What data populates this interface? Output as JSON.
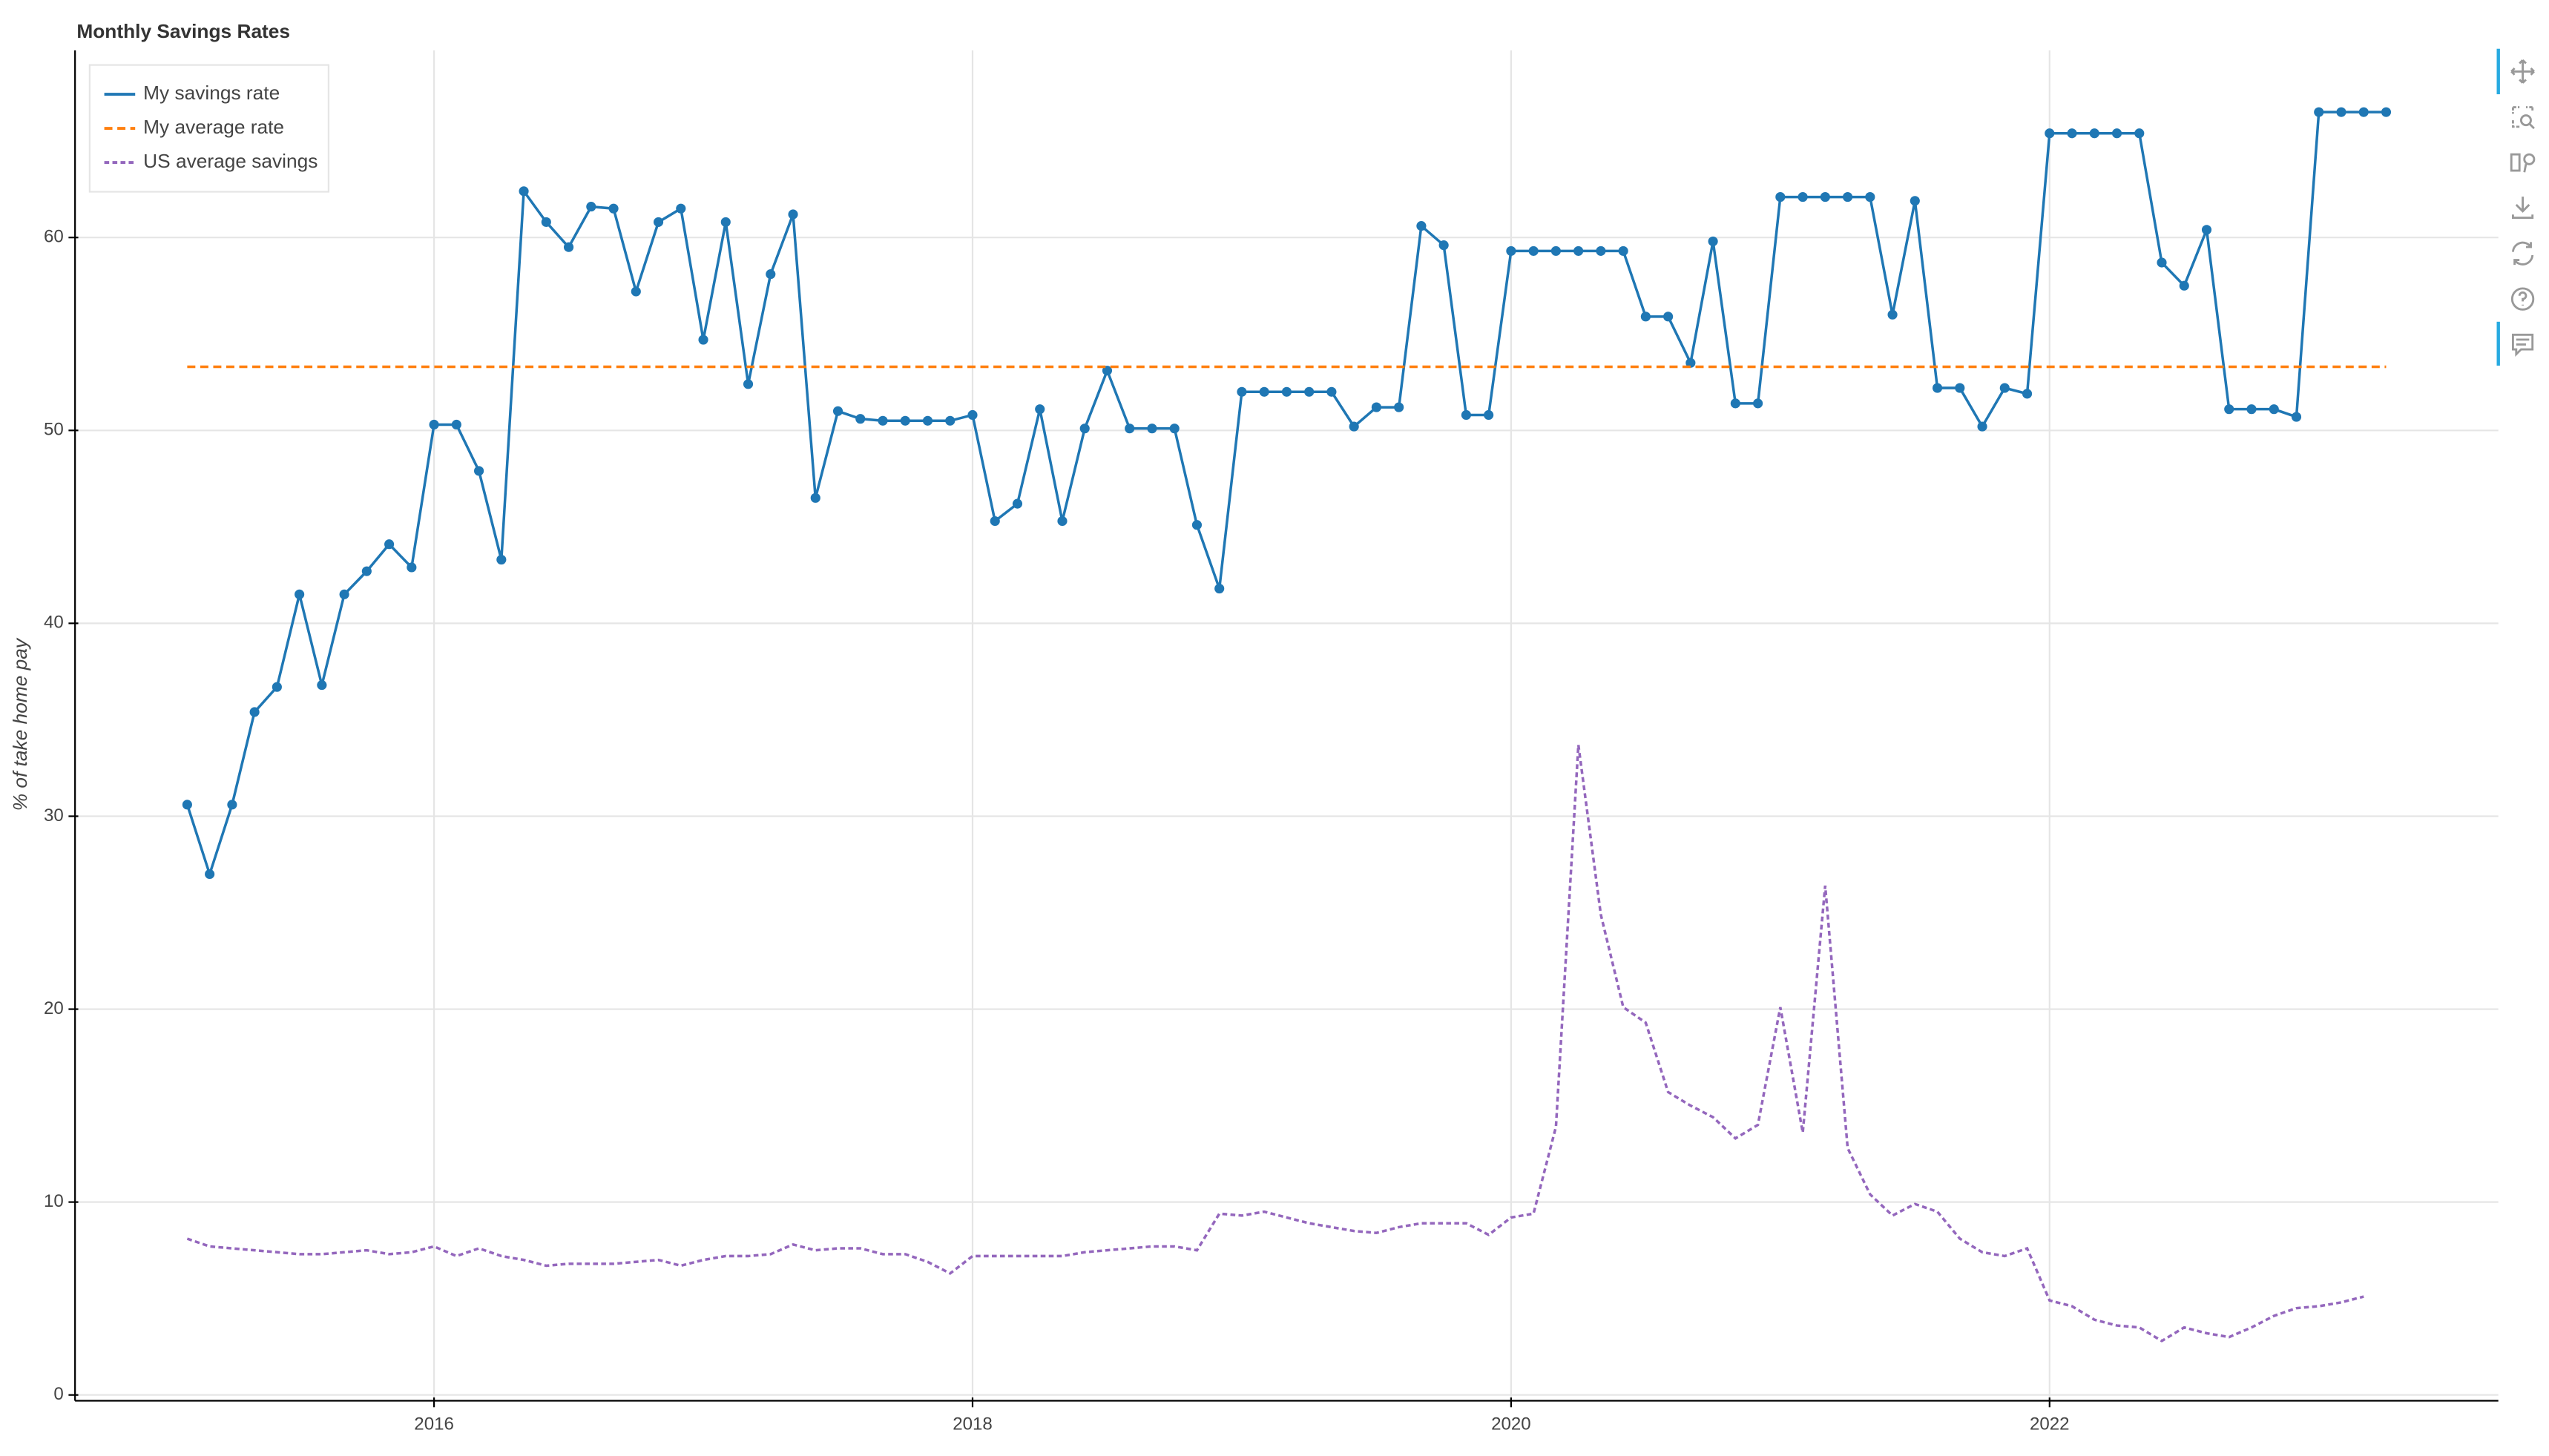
{
  "chart_data": {
    "type": "line",
    "title": "Monthly Savings Rates",
    "y_label": "% of take home pay",
    "x": [
      "2015-02",
      "2015-03",
      "2015-04",
      "2015-05",
      "2015-06",
      "2015-07",
      "2015-08",
      "2015-09",
      "2015-10",
      "2015-11",
      "2015-12",
      "2016-01",
      "2016-02",
      "2016-03",
      "2016-04",
      "2016-05",
      "2016-06",
      "2016-07",
      "2016-08",
      "2016-09",
      "2016-10",
      "2016-11",
      "2016-12",
      "2017-01",
      "2017-02",
      "2017-03",
      "2017-04",
      "2017-05",
      "2017-06",
      "2017-07",
      "2017-08",
      "2017-09",
      "2017-10",
      "2017-11",
      "2017-12",
      "2018-01",
      "2018-02",
      "2018-03",
      "2018-04",
      "2018-05",
      "2018-06",
      "2018-07",
      "2018-08",
      "2018-09",
      "2018-10",
      "2018-11",
      "2018-12",
      "2019-01",
      "2019-02",
      "2019-03",
      "2019-04",
      "2019-05",
      "2019-06",
      "2019-07",
      "2019-08",
      "2019-09",
      "2019-10",
      "2019-11",
      "2019-12",
      "2020-01",
      "2020-02",
      "2020-03",
      "2020-04",
      "2020-05",
      "2020-06",
      "2020-07",
      "2020-08",
      "2020-09",
      "2020-10",
      "2020-11",
      "2020-12",
      "2021-01",
      "2021-02",
      "2021-03",
      "2021-04",
      "2021-05",
      "2021-06",
      "2021-07",
      "2021-08",
      "2021-09",
      "2021-10",
      "2021-11",
      "2021-12",
      "2022-01",
      "2022-02",
      "2022-03",
      "2022-04",
      "2022-05",
      "2022-06",
      "2022-07",
      "2022-08",
      "2022-09",
      "2022-10",
      "2022-11",
      "2022-12",
      "2023-01",
      "2023-02",
      "2023-03",
      "2023-04"
    ],
    "series": [
      {
        "name": "My savings rate",
        "color": "#1f77b4",
        "dash": "solid",
        "markers": true,
        "values": [
          30.6,
          27.0,
          30.6,
          35.4,
          36.7,
          41.5,
          36.8,
          41.5,
          42.7,
          44.1,
          42.9,
          50.3,
          50.3,
          47.9,
          43.3,
          62.4,
          60.8,
          59.5,
          61.6,
          61.5,
          57.2,
          60.8,
          61.5,
          54.7,
          60.8,
          52.4,
          58.1,
          61.2,
          46.5,
          51.0,
          50.6,
          50.5,
          50.5,
          50.5,
          50.5,
          50.8,
          45.3,
          46.2,
          51.1,
          45.3,
          50.1,
          53.1,
          50.1,
          50.1,
          50.1,
          45.1,
          41.8,
          52.0,
          52.0,
          52.0,
          52.0,
          52.0,
          50.2,
          51.2,
          51.2,
          60.6,
          59.6,
          50.8,
          50.8,
          59.3,
          59.3,
          59.3,
          59.3,
          59.3,
          59.3,
          55.9,
          55.9,
          53.5,
          59.8,
          51.4,
          51.4,
          62.1,
          62.1,
          62.1,
          62.1,
          62.1,
          56.0,
          61.9,
          52.2,
          52.2,
          50.2,
          52.2,
          51.9,
          65.4,
          65.4,
          65.4,
          65.4,
          65.4,
          58.7,
          57.5,
          60.4,
          51.1,
          51.1,
          51.1,
          50.7,
          66.5,
          66.5,
          66.5,
          66.5
        ]
      },
      {
        "name": "My average rate",
        "color": "#ff7f0e",
        "dash": "dashed",
        "markers": false,
        "values": [
          53.3,
          53.3,
          53.3,
          53.3,
          53.3,
          53.3,
          53.3,
          53.3,
          53.3,
          53.3,
          53.3,
          53.3,
          53.3,
          53.3,
          53.3,
          53.3,
          53.3,
          53.3,
          53.3,
          53.3,
          53.3,
          53.3,
          53.3,
          53.3,
          53.3,
          53.3,
          53.3,
          53.3,
          53.3,
          53.3,
          53.3,
          53.3,
          53.3,
          53.3,
          53.3,
          53.3,
          53.3,
          53.3,
          53.3,
          53.3,
          53.3,
          53.3,
          53.3,
          53.3,
          53.3,
          53.3,
          53.3,
          53.3,
          53.3,
          53.3,
          53.3,
          53.3,
          53.3,
          53.3,
          53.3,
          53.3,
          53.3,
          53.3,
          53.3,
          53.3,
          53.3,
          53.3,
          53.3,
          53.3,
          53.3,
          53.3,
          53.3,
          53.3,
          53.3,
          53.3,
          53.3,
          53.3,
          53.3,
          53.3,
          53.3,
          53.3,
          53.3,
          53.3,
          53.3,
          53.3,
          53.3,
          53.3,
          53.3,
          53.3,
          53.3,
          53.3,
          53.3,
          53.3,
          53.3,
          53.3,
          53.3,
          53.3,
          53.3,
          53.3,
          53.3,
          53.3,
          53.3,
          53.3,
          53.3
        ]
      },
      {
        "name": "US average savings",
        "color": "#9467bd",
        "dash": "dotted",
        "markers": false,
        "values": [
          8.1,
          7.7,
          7.6,
          7.5,
          7.4,
          7.3,
          7.3,
          7.4,
          7.5,
          7.3,
          7.4,
          7.7,
          7.2,
          7.6,
          7.2,
          7.0,
          6.7,
          6.8,
          6.8,
          6.8,
          6.9,
          7.0,
          6.7,
          7.0,
          7.2,
          7.2,
          7.3,
          7.8,
          7.5,
          7.6,
          7.6,
          7.3,
          7.3,
          6.9,
          6.3,
          7.2,
          7.2,
          7.2,
          7.2,
          7.2,
          7.4,
          7.5,
          7.6,
          7.7,
          7.7,
          7.5,
          9.4,
          9.3,
          9.5,
          9.2,
          8.9,
          8.7,
          8.5,
          8.4,
          8.7,
          8.9,
          8.9,
          8.9,
          8.3,
          9.2,
          9.4,
          13.9,
          33.7,
          24.9,
          20.1,
          19.3,
          15.7,
          15.0,
          14.4,
          13.3,
          14.0,
          20.1,
          13.6,
          26.4,
          12.8,
          10.4,
          9.3,
          9.9,
          9.5,
          8.1,
          7.4,
          7.2,
          7.6,
          4.9,
          4.6,
          3.9,
          3.6,
          3.5,
          2.8,
          3.5,
          3.2,
          3.0,
          3.5,
          4.1,
          4.5,
          4.6,
          4.8,
          5.1,
          null
        ]
      }
    ],
    "xlim": [
      "2014-09",
      "2023-09"
    ],
    "xticks": [
      {
        "value": "2016-01",
        "label": "2016"
      },
      {
        "value": "2018-01",
        "label": "2018"
      },
      {
        "value": "2020-01",
        "label": "2020"
      },
      {
        "value": "2022-01",
        "label": "2022"
      }
    ],
    "ylim": [
      -0.3,
      69.7
    ],
    "yticks": [
      0,
      10,
      20,
      30,
      40,
      50,
      60
    ],
    "grid": true,
    "legend": "top-left"
  }
}
